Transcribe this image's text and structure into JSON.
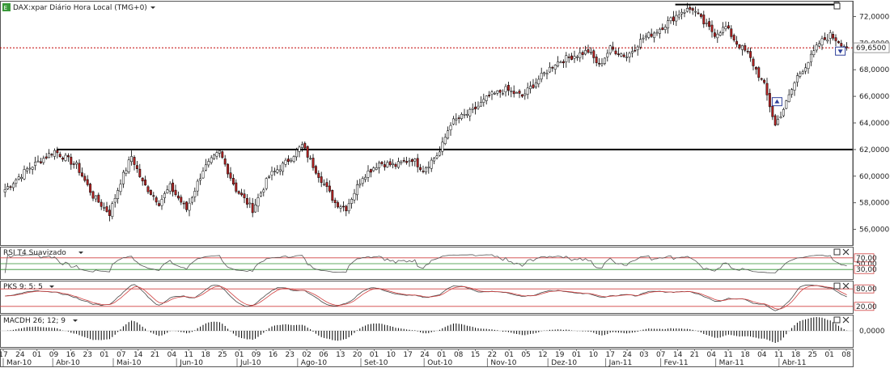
{
  "header": {
    "instrument": "DAX:xpar Diário Hora Local (TMG+0)",
    "rsi_title": "RSI T4 Suavizado",
    "pks_title": "PKS 9; 5; 5",
    "macdh_title": "MACDH 26; 12; 9"
  },
  "icons": {
    "logo": "eps-app-icon",
    "dropdown": "triangle-down-icon",
    "panel_buttons": [
      "maximize-icon",
      "close-icon"
    ]
  },
  "colors": {
    "up_candle": "#ffffff",
    "down_candle": "#b22222",
    "ref_line": "#000000",
    "current_price_line": "#c00000",
    "rsi_bands": "#d04040",
    "rsi_mid": "#2f8f2f",
    "pks_fast": "#444444",
    "pks_slow": "#d04040"
  },
  "chart_data": {
    "type": "candlestick",
    "price_panel": {
      "yticks": [
        "72,0000",
        "70,0000",
        "68,0000",
        "66,0000",
        "64,0000",
        "62,0000",
        "60,0000",
        "58,0000",
        "56,0000"
      ],
      "ylim": [
        55.0,
        73.0
      ],
      "current_price_label": "69,6500",
      "current_price": 69.65,
      "horizontal_lines": [
        62.0,
        72.9
      ],
      "anchor_closes": [
        [
          0,
          59.0
        ],
        [
          8,
          60.5
        ],
        [
          18,
          61.9
        ],
        [
          26,
          60.8
        ],
        [
          32,
          58.5
        ],
        [
          38,
          57.2
        ],
        [
          42,
          59.6
        ],
        [
          46,
          61.5
        ],
        [
          50,
          59.5
        ],
        [
          56,
          58.0
        ],
        [
          60,
          59.2
        ],
        [
          66,
          57.5
        ],
        [
          72,
          60.5
        ],
        [
          78,
          61.8
        ],
        [
          84,
          59.0
        ],
        [
          90,
          57.5
        ],
        [
          96,
          60.0
        ],
        [
          102,
          61.0
        ],
        [
          108,
          62.3
        ],
        [
          112,
          60.8
        ],
        [
          120,
          58.0
        ],
        [
          124,
          57.6
        ],
        [
          130,
          60.0
        ],
        [
          136,
          61.0
        ],
        [
          142,
          60.8
        ],
        [
          148,
          61.3
        ],
        [
          152,
          60.5
        ],
        [
          158,
          61.8
        ],
        [
          162,
          64.0
        ],
        [
          170,
          64.9
        ],
        [
          176,
          66.0
        ],
        [
          182,
          66.5
        ],
        [
          188,
          66.0
        ],
        [
          194,
          67.3
        ],
        [
          200,
          68.5
        ],
        [
          206,
          69.0
        ],
        [
          212,
          69.4
        ],
        [
          216,
          68.3
        ],
        [
          220,
          69.6
        ],
        [
          226,
          69.0
        ],
        [
          232,
          70.4
        ],
        [
          236,
          70.8
        ],
        [
          240,
          71.4
        ],
        [
          246,
          72.4
        ],
        [
          250,
          72.6
        ],
        [
          254,
          71.5
        ],
        [
          258,
          70.7
        ],
        [
          262,
          71.2
        ],
        [
          266,
          70.0
        ],
        [
          270,
          69.2
        ],
        [
          276,
          66.8
        ],
        [
          280,
          63.8
        ],
        [
          284,
          65.5
        ],
        [
          288,
          67.5
        ],
        [
          292,
          68.6
        ],
        [
          296,
          70.0
        ],
        [
          300,
          70.6
        ],
        [
          304,
          70.0
        ],
        [
          306,
          69.65
        ]
      ],
      "markers": [
        {
          "label": "buy",
          "bar": 281,
          "price": 65.6
        },
        {
          "label": "sell",
          "bar": 304,
          "price": 69.4
        }
      ]
    },
    "rsi_panel": {
      "title": "RSI T4 Suavizado",
      "levels": [
        "70,00",
        "50,00",
        "30,00"
      ],
      "level_values": [
        70,
        50,
        30
      ]
    },
    "pks_panel": {
      "title": "PKS 9; 5; 5",
      "levels": [
        "80,00",
        "20,00"
      ],
      "level_values": [
        80,
        20
      ]
    },
    "macdh_panel": {
      "title": "MACDH 26; 12; 9",
      "levels": [
        "0,0000"
      ],
      "level_values": [
        0
      ]
    },
    "x_day_labels": [
      "17",
      "24",
      "01",
      "09",
      "16",
      "23",
      "01",
      "07",
      "14",
      "21",
      "04",
      "11",
      "18",
      "25",
      "01",
      "09",
      "16",
      "23",
      "02",
      "06",
      "13",
      "20",
      "01",
      "10",
      "17",
      "24",
      "01",
      "08",
      "15",
      "22",
      "01",
      "05",
      "12",
      "19",
      "01",
      "10",
      "17",
      "24",
      "03",
      "07",
      "14",
      "21",
      "04",
      "11",
      "18",
      "04",
      "11",
      "18",
      "25",
      "01",
      "08"
    ],
    "x_month_labels": [
      "Mar-10",
      "Abr-10",
      "Mai-10",
      "Jun-10",
      "Jul-10",
      "Ago-10",
      "Set-10",
      "Out-10",
      "Nov-10",
      "Dez-10",
      "Jan-11",
      "Fev-11",
      "Mar-11",
      "Abr-11"
    ],
    "x_month_bars": [
      0,
      18,
      40,
      63,
      85,
      107,
      130,
      153,
      176,
      198,
      219,
      239,
      259,
      282
    ]
  }
}
